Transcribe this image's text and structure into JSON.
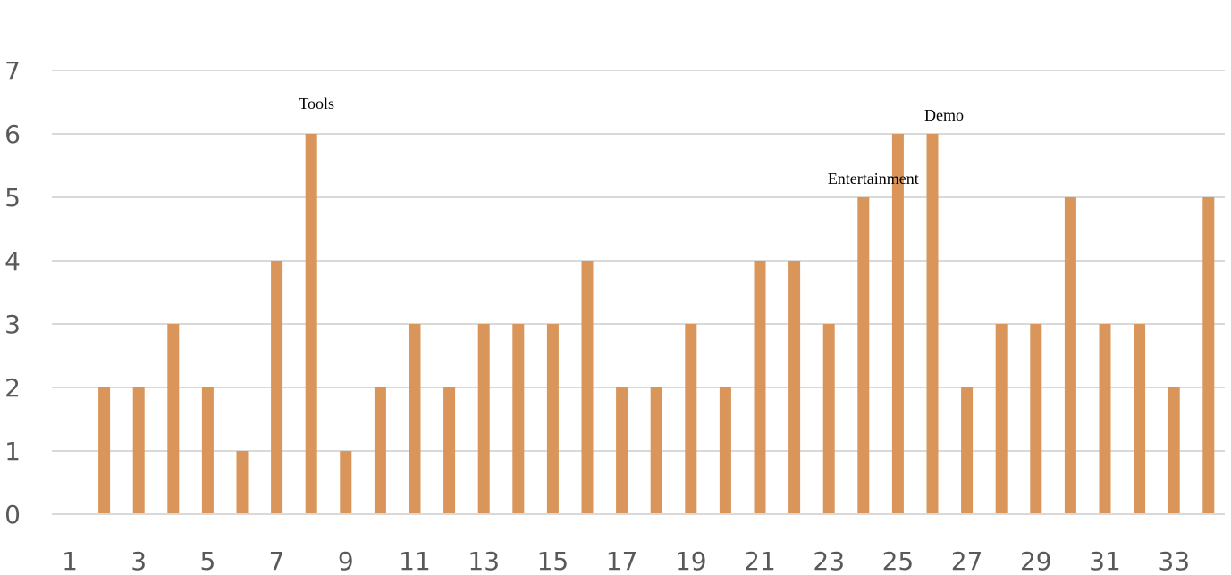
{
  "chart_data": {
    "type": "bar",
    "categories": [
      1,
      2,
      3,
      4,
      5,
      6,
      7,
      8,
      9,
      10,
      11,
      12,
      13,
      14,
      15,
      16,
      17,
      18,
      19,
      20,
      21,
      22,
      23,
      24,
      25,
      26,
      27,
      28,
      29,
      30,
      31,
      32,
      33,
      34
    ],
    "values": [
      0,
      2,
      2,
      3,
      2,
      1,
      4,
      6,
      1,
      2,
      3,
      2,
      3,
      3,
      3,
      4,
      2,
      2,
      3,
      2,
      4,
      4,
      3,
      5,
      6,
      6,
      2,
      3,
      3,
      5,
      3,
      3,
      2,
      5
    ],
    "x_tick_labels": [
      "1",
      "3",
      "5",
      "7",
      "9",
      "11",
      "13",
      "15",
      "17",
      "19",
      "21",
      "23",
      "25",
      "27",
      "29",
      "31",
      "33"
    ],
    "y_tick_labels": [
      "0",
      "1",
      "2",
      "3",
      "4",
      "5",
      "6",
      "7"
    ],
    "ylim": [
      0,
      7
    ],
    "grid": "horizontal",
    "legend": "none",
    "bar_color": "#D9955A",
    "grid_color": "#D9D9D9",
    "annotations": [
      {
        "text": "Tools",
        "category": 8
      },
      {
        "text": "Entertainment",
        "category": 24
      },
      {
        "text": "Demo",
        "category": 26
      }
    ]
  }
}
